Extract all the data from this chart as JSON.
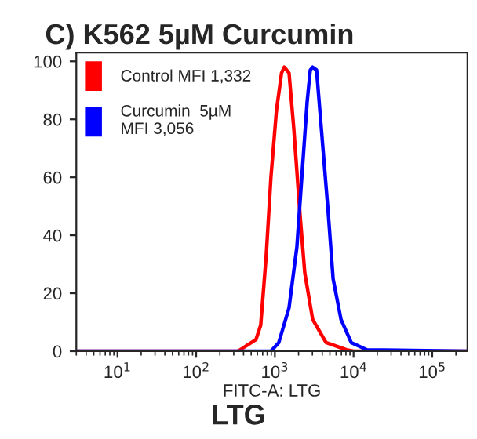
{
  "chart_data": {
    "type": "line",
    "title": "C) K562 5µM Curcumin",
    "xlabel": "FITC-A: LTG",
    "annotations": [
      "LTG"
    ],
    "log": "x",
    "xlim": [
      3,
      280000
    ],
    "ylim": [
      0,
      103
    ],
    "xticks": [
      {
        "value": 10,
        "label": "10$^{1}$"
      },
      {
        "value": 100,
        "label": "10$^{2}$"
      },
      {
        "value": 1000,
        "label": "10$^{3}$"
      },
      {
        "value": 10000,
        "label": "10$^{4}$"
      },
      {
        "value": 100000,
        "label": "10$^{5}$"
      }
    ],
    "yticks": [
      0,
      20,
      40,
      60,
      80,
      100
    ],
    "grid": false,
    "legend": "top left",
    "marker": "none",
    "line_style": "solid",
    "series": [
      {
        "name": "Control MFI 1,332",
        "color": "#ff0000",
        "x": [
          3,
          339,
          575,
          661,
          776,
          891,
          1047,
          1216,
          1318,
          1514,
          1738,
          2089,
          2399,
          3020,
          4467,
          8128,
          10000,
          280000
        ],
        "values": [
          0,
          0,
          4,
          9,
          33,
          60,
          83,
          96,
          98,
          96,
          77,
          47,
          27,
          11,
          3,
          0.5,
          0,
          0
        ]
      },
      {
        "name": "Curcumin  5µM\nMFI 3,056",
        "color": "#0000ff",
        "x": [
          3,
          891,
          1122,
          1514,
          1905,
          2239,
          2570,
          2818,
          3020,
          3388,
          3890,
          4786,
          5495,
          6918,
          9333,
          14791,
          280000
        ],
        "values": [
          0,
          0,
          3,
          15,
          36,
          63,
          86,
          97,
          98,
          97,
          77,
          47,
          25,
          11,
          3,
          0.5,
          0
        ]
      }
    ]
  }
}
